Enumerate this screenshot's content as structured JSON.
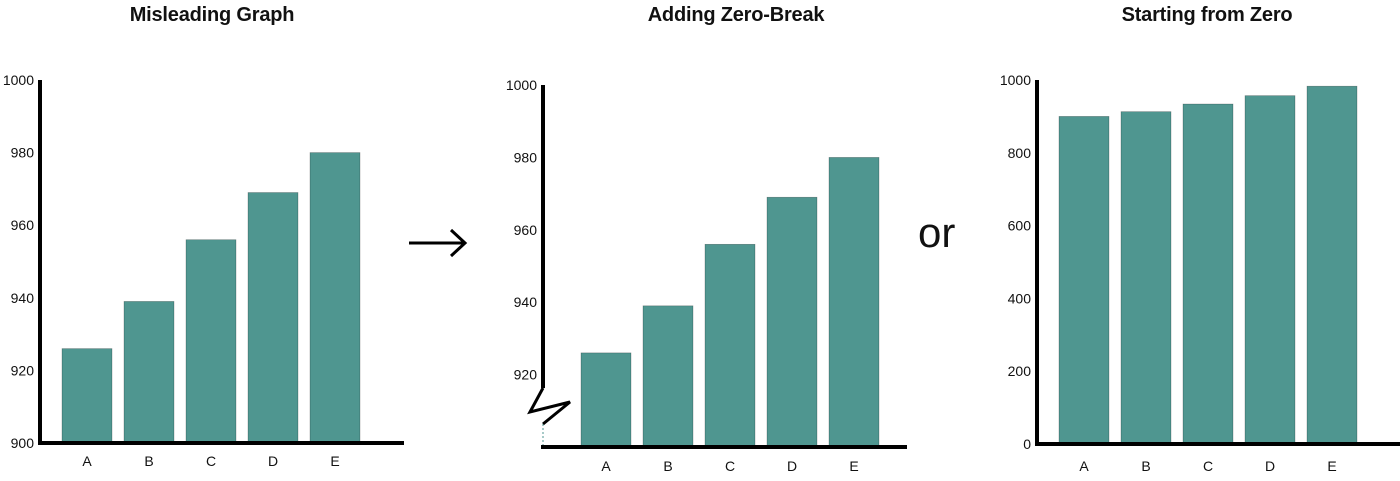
{
  "connectors": {
    "arrow": "→",
    "or": "or"
  },
  "colors": {
    "bar": "#4f9690",
    "axis": "#000000"
  },
  "chart_data": [
    {
      "type": "bar",
      "title": "Misleading Graph",
      "categories": [
        "A",
        "B",
        "C",
        "D",
        "E"
      ],
      "values": [
        926,
        939,
        956,
        969,
        980
      ],
      "ylim": [
        900,
        1000
      ],
      "yticks": [
        900,
        920,
        940,
        960,
        980,
        1000
      ],
      "axis_break": false,
      "grid": false
    },
    {
      "type": "bar",
      "title": "Adding Zero-Break",
      "categories": [
        "A",
        "B",
        "C",
        "D",
        "E"
      ],
      "values": [
        926,
        939,
        956,
        969,
        980
      ],
      "ylim": [
        900,
        1000
      ],
      "yticks": [
        920,
        940,
        960,
        980,
        1000
      ],
      "axis_break": true,
      "grid": false
    },
    {
      "type": "bar",
      "title": "Starting from Zero",
      "categories": [
        "A",
        "B",
        "C",
        "D",
        "E"
      ],
      "values": [
        900,
        913,
        934,
        957,
        983
      ],
      "ylim": [
        0,
        1000
      ],
      "yticks": [
        0,
        200,
        400,
        600,
        800,
        1000
      ],
      "axis_break": false,
      "grid": false
    }
  ]
}
